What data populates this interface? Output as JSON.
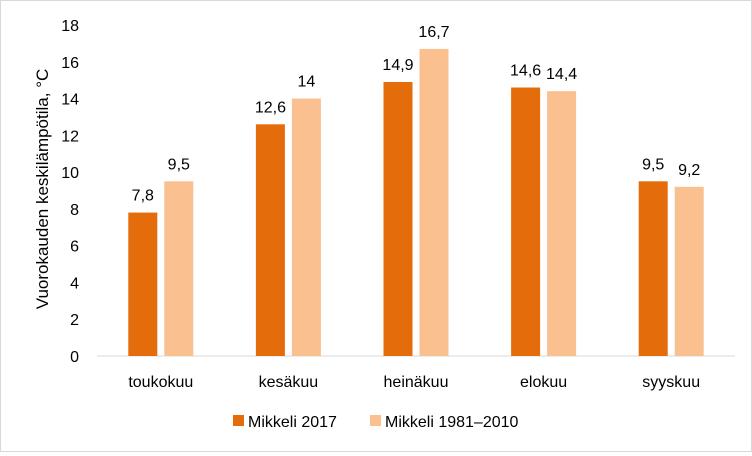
{
  "chart_data": {
    "type": "bar",
    "title": "",
    "xlabel": "",
    "ylabel": "Vuorokauden keskilämpötila, °C",
    "ylim": [
      0,
      18
    ],
    "ytick_step": 2,
    "categories": [
      "toukokuu",
      "kesäkuu",
      "heinäkuu",
      "elokuu",
      "syyskuu"
    ],
    "series": [
      {
        "name": "Mikkeli 2017",
        "color": "#e46c0a",
        "values": [
          7.8,
          12.6,
          14.9,
          14.6,
          9.5
        ],
        "labels": [
          "7,8",
          "12,6",
          "14,9",
          "14,6",
          "9,5"
        ]
      },
      {
        "name": "Mikkeli 1981–2010",
        "color": "#fac090",
        "values": [
          9.5,
          14,
          16.7,
          14.4,
          9.2
        ],
        "labels": [
          "9,5",
          "14",
          "16,7",
          "14,4",
          "9,2"
        ]
      }
    ],
    "grid": false,
    "legend": "bottom"
  }
}
